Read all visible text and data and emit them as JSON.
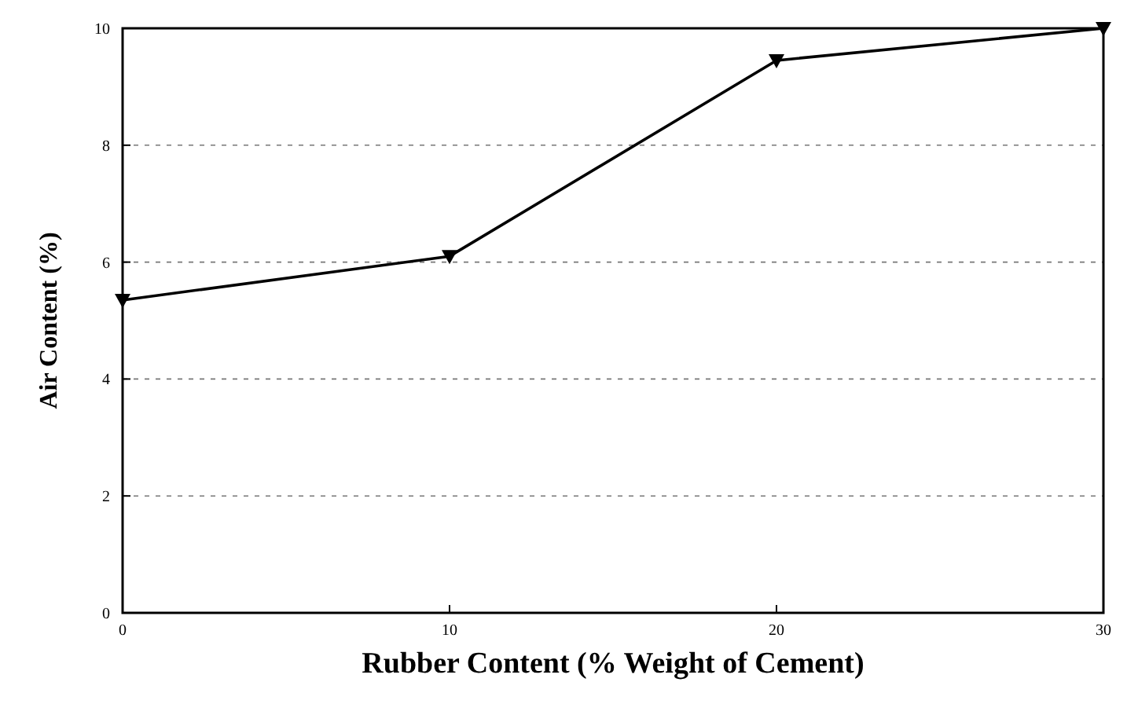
{
  "chart_data": {
    "type": "line",
    "xlabel": "Rubber Content (% Weight of Cement)",
    "ylabel": "Air Content (%)",
    "x": [
      0,
      10,
      20,
      30
    ],
    "series": [
      {
        "color": "#000000",
        "values": [
          5.35,
          6.1,
          9.45,
          10.0
        ]
      }
    ],
    "xlim": [
      0,
      30
    ],
    "xticks": [
      0,
      10,
      20,
      30
    ],
    "ylim": [
      0,
      10
    ],
    "yticks": [
      0,
      2,
      4,
      6,
      8,
      10
    ],
    "grid": "y",
    "marker": "triangle",
    "line_style": "solid"
  }
}
